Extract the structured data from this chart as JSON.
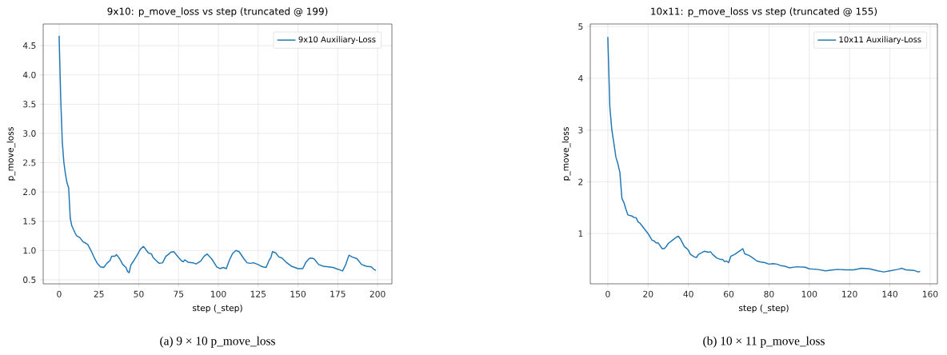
{
  "chart_data": [
    {
      "type": "line",
      "title": "9x10: p_move_loss vs step (truncated @ 199)",
      "xlabel": "step (_step)",
      "ylabel": "p_move_loss",
      "annotations": [
        "(a) 9 × 10 p_move_loss"
      ],
      "series": [
        {
          "name": "9x10 Auxiliary-Loss",
          "color": "#1f77b4",
          "x": [
            0,
            1,
            2,
            3,
            4,
            5,
            6,
            7,
            8,
            10,
            11,
            13,
            15,
            17,
            18,
            20,
            22,
            24,
            26,
            28,
            30,
            32,
            33,
            35,
            36,
            38,
            40,
            42,
            43,
            44,
            45,
            47,
            49,
            51,
            53,
            56,
            58,
            59,
            62,
            63,
            65,
            67,
            69,
            70,
            72,
            75,
            77,
            78,
            79,
            81,
            84,
            86,
            89,
            91,
            93,
            96,
            99,
            101,
            102,
            103,
            105,
            107,
            109,
            111,
            113,
            116,
            118,
            120,
            122,
            125,
            127,
            128,
            130,
            132,
            133,
            134,
            136,
            138,
            140,
            143,
            146,
            148,
            150,
            151,
            153,
            155,
            157,
            158,
            160,
            163,
            166,
            169,
            172,
            174,
            176,
            178,
            180,
            182,
            184,
            187,
            190,
            193,
            196,
            198,
            199
          ],
          "values": [
            4.67,
            3.6,
            2.85,
            2.5,
            2.3,
            2.15,
            2.07,
            1.55,
            1.42,
            1.3,
            1.25,
            1.22,
            1.15,
            1.12,
            1.1,
            1.0,
            0.88,
            0.78,
            0.72,
            0.71,
            0.78,
            0.83,
            0.9,
            0.9,
            0.93,
            0.86,
            0.76,
            0.71,
            0.64,
            0.62,
            0.75,
            0.83,
            0.92,
            1.02,
            1.07,
            0.96,
            0.94,
            0.88,
            0.8,
            0.78,
            0.79,
            0.9,
            0.94,
            0.97,
            0.98,
            0.88,
            0.82,
            0.81,
            0.84,
            0.8,
            0.79,
            0.77,
            0.82,
            0.9,
            0.94,
            0.85,
            0.72,
            0.69,
            0.7,
            0.71,
            0.69,
            0.84,
            0.95,
            1.0,
            0.98,
            0.86,
            0.79,
            0.78,
            0.79,
            0.76,
            0.73,
            0.72,
            0.71,
            0.84,
            0.88,
            0.98,
            0.96,
            0.89,
            0.87,
            0.79,
            0.73,
            0.71,
            0.69,
            0.69,
            0.69,
            0.8,
            0.86,
            0.87,
            0.86,
            0.76,
            0.73,
            0.72,
            0.71,
            0.69,
            0.67,
            0.65,
            0.76,
            0.92,
            0.89,
            0.86,
            0.76,
            0.73,
            0.72,
            0.67,
            0.66
          ]
        }
      ],
      "xlim": [
        -10,
        209
      ],
      "ylim": [
        0.43,
        4.87
      ],
      "xticks": [
        0,
        25,
        50,
        75,
        100,
        125,
        150,
        175,
        200
      ],
      "yticks": [
        {
          "value": 0.5,
          "label": "0.5"
        },
        {
          "value": 1.0,
          "label": "1.0"
        },
        {
          "value": 1.5,
          "label": "1.5"
        },
        {
          "value": 2.0,
          "label": "2.0"
        },
        {
          "value": 2.5,
          "label": "2.5"
        },
        {
          "value": 3.0,
          "label": "3.0"
        },
        {
          "value": 3.5,
          "label": "3.5"
        },
        {
          "value": 4.0,
          "label": "4.0"
        },
        {
          "value": 4.5,
          "label": "4.5"
        }
      ],
      "grid": true,
      "legend": "top right"
    },
    {
      "type": "line",
      "title": "10x11: p_move_loss vs step (truncated @ 155)",
      "xlabel": "step (_step)",
      "ylabel": "p_move_loss",
      "annotations": [
        "(b) 10 × 11 p_move_loss"
      ],
      "series": [
        {
          "name": "10x11 Auxiliary-Loss",
          "color": "#1f77b4",
          "x": [
            0,
            1,
            2,
            3,
            4,
            5,
            6,
            7,
            8,
            9,
            10,
            12,
            13,
            14,
            15,
            16,
            18,
            20,
            22,
            23,
            24,
            25,
            27,
            28,
            29,
            30,
            32,
            34,
            35,
            36,
            38,
            39,
            40,
            41,
            43,
            44,
            45,
            46,
            48,
            50,
            51,
            52,
            54,
            56,
            57,
            58,
            59,
            60,
            61,
            63,
            66,
            67,
            68,
            70,
            72,
            74,
            76,
            78,
            80,
            82,
            84,
            86,
            88,
            90,
            94,
            98,
            100,
            104,
            108,
            112,
            114,
            118,
            122,
            126,
            130,
            134,
            137,
            140,
            144,
            146,
            148,
            152,
            154,
            155
          ],
          "values": [
            4.8,
            3.45,
            3.0,
            2.75,
            2.48,
            2.35,
            2.18,
            1.68,
            1.6,
            1.47,
            1.36,
            1.34,
            1.31,
            1.31,
            1.23,
            1.2,
            1.1,
            1.0,
            0.87,
            0.86,
            0.82,
            0.82,
            0.71,
            0.71,
            0.75,
            0.81,
            0.87,
            0.93,
            0.95,
            0.9,
            0.75,
            0.72,
            0.68,
            0.6,
            0.55,
            0.54,
            0.6,
            0.62,
            0.66,
            0.64,
            0.65,
            0.6,
            0.53,
            0.5,
            0.5,
            0.46,
            0.47,
            0.44,
            0.56,
            0.6,
            0.68,
            0.71,
            0.61,
            0.58,
            0.53,
            0.47,
            0.45,
            0.44,
            0.41,
            0.42,
            0.41,
            0.38,
            0.37,
            0.34,
            0.36,
            0.35,
            0.32,
            0.31,
            0.28,
            0.3,
            0.31,
            0.3,
            0.3,
            0.33,
            0.32,
            0.28,
            0.26,
            0.28,
            0.31,
            0.33,
            0.3,
            0.29,
            0.26,
            0.27
          ]
        }
      ],
      "xlim": [
        -8.7,
        163.6
      ],
      "ylim": [
        0.03,
        5.05
      ],
      "xticks": [
        0,
        20,
        40,
        60,
        80,
        100,
        120,
        140,
        160
      ],
      "yticks": [
        1,
        2,
        3,
        4,
        5
      ],
      "grid": true,
      "legend": "top right"
    }
  ]
}
